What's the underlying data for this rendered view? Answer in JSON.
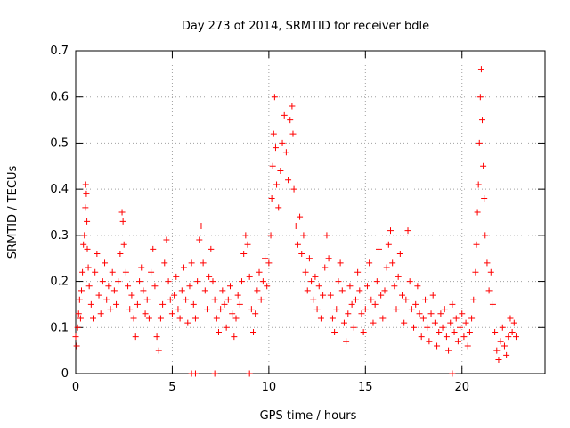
{
  "chart_data": {
    "type": "scatter",
    "title": "Day 273 of 2014, SRMTID for receiver bdle",
    "xlabel": "GPS time / hours",
    "ylabel": "SRMTID / TECUs",
    "xlim": [
      0,
      24.3
    ],
    "ylim": [
      0,
      0.7
    ],
    "xticks": [
      0,
      5,
      10,
      15,
      20
    ],
    "yticks": [
      0,
      0.1,
      0.2,
      0.3,
      0.4,
      0.5,
      0.6,
      0.7
    ],
    "grid": true,
    "marker": "+",
    "series": [
      {
        "name": "bdle",
        "color": "#ff0000",
        "points": [
          [
            0.0,
            0.08
          ],
          [
            0.05,
            0.06
          ],
          [
            0.1,
            0.1
          ],
          [
            0.15,
            0.13
          ],
          [
            0.2,
            0.16
          ],
          [
            0.25,
            0.12
          ],
          [
            0.3,
            0.18
          ],
          [
            0.35,
            0.22
          ],
          [
            0.4,
            0.28
          ],
          [
            0.45,
            0.3
          ],
          [
            0.5,
            0.36
          ],
          [
            0.52,
            0.41
          ],
          [
            0.55,
            0.39
          ],
          [
            0.58,
            0.33
          ],
          [
            0.6,
            0.27
          ],
          [
            0.65,
            0.23
          ],
          [
            0.7,
            0.19
          ],
          [
            0.8,
            0.15
          ],
          [
            0.9,
            0.12
          ],
          [
            1.0,
            0.22
          ],
          [
            1.1,
            0.26
          ],
          [
            1.2,
            0.17
          ],
          [
            1.3,
            0.13
          ],
          [
            1.4,
            0.2
          ],
          [
            1.5,
            0.24
          ],
          [
            1.6,
            0.16
          ],
          [
            1.7,
            0.19
          ],
          [
            1.8,
            0.14
          ],
          [
            1.9,
            0.22
          ],
          [
            2.0,
            0.18
          ],
          [
            2.1,
            0.15
          ],
          [
            2.2,
            0.2
          ],
          [
            2.3,
            0.26
          ],
          [
            2.4,
            0.35
          ],
          [
            2.45,
            0.33
          ],
          [
            2.5,
            0.28
          ],
          [
            2.6,
            0.22
          ],
          [
            2.7,
            0.19
          ],
          [
            2.8,
            0.14
          ],
          [
            2.9,
            0.17
          ],
          [
            3.0,
            0.12
          ],
          [
            3.1,
            0.08
          ],
          [
            3.2,
            0.15
          ],
          [
            3.3,
            0.2
          ],
          [
            3.4,
            0.23
          ],
          [
            3.5,
            0.18
          ],
          [
            3.6,
            0.13
          ],
          [
            3.7,
            0.16
          ],
          [
            3.8,
            0.12
          ],
          [
            3.9,
            0.22
          ],
          [
            4.0,
            0.27
          ],
          [
            4.1,
            0.19
          ],
          [
            4.2,
            0.08
          ],
          [
            4.3,
            0.05
          ],
          [
            4.4,
            0.12
          ],
          [
            4.5,
            0.15
          ],
          [
            4.6,
            0.24
          ],
          [
            4.7,
            0.29
          ],
          [
            4.8,
            0.2
          ],
          [
            4.9,
            0.16
          ],
          [
            5.0,
            0.13
          ],
          [
            5.1,
            0.17
          ],
          [
            5.2,
            0.21
          ],
          [
            5.3,
            0.14
          ],
          [
            5.4,
            0.12
          ],
          [
            5.5,
            0.18
          ],
          [
            5.6,
            0.23
          ],
          [
            5.7,
            0.16
          ],
          [
            5.8,
            0.11
          ],
          [
            5.9,
            0.19
          ],
          [
            6.0,
            0.24
          ],
          [
            6.1,
            0.15
          ],
          [
            6.2,
            0.12
          ],
          [
            6.3,
            0.2
          ],
          [
            6.4,
            0.29
          ],
          [
            6.5,
            0.32
          ],
          [
            6.6,
            0.24
          ],
          [
            6.7,
            0.18
          ],
          [
            6.8,
            0.14
          ],
          [
            6.9,
            0.21
          ],
          [
            7.0,
            0.27
          ],
          [
            7.1,
            0.2
          ],
          [
            7.2,
            0.16
          ],
          [
            7.3,
            0.12
          ],
          [
            7.4,
            0.09
          ],
          [
            7.5,
            0.14
          ],
          [
            7.6,
            0.18
          ],
          [
            7.7,
            0.15
          ],
          [
            7.8,
            0.1
          ],
          [
            7.9,
            0.16
          ],
          [
            8.0,
            0.19
          ],
          [
            8.1,
            0.13
          ],
          [
            8.2,
            0.08
          ],
          [
            8.3,
            0.12
          ],
          [
            8.4,
            0.17
          ],
          [
            8.5,
            0.15
          ],
          [
            8.6,
            0.2
          ],
          [
            8.7,
            0.26
          ],
          [
            8.8,
            0.3
          ],
          [
            8.9,
            0.28
          ],
          [
            9.0,
            0.21
          ],
          [
            9.1,
            0.14
          ],
          [
            9.2,
            0.09
          ],
          [
            9.3,
            0.13
          ],
          [
            9.4,
            0.18
          ],
          [
            9.5,
            0.22
          ],
          [
            9.6,
            0.16
          ],
          [
            9.7,
            0.2
          ],
          [
            9.8,
            0.25
          ],
          [
            9.9,
            0.19
          ],
          [
            10.0,
            0.24
          ],
          [
            10.1,
            0.3
          ],
          [
            10.15,
            0.38
          ],
          [
            10.2,
            0.45
          ],
          [
            10.25,
            0.52
          ],
          [
            10.3,
            0.6
          ],
          [
            10.35,
            0.49
          ],
          [
            10.4,
            0.41
          ],
          [
            10.5,
            0.36
          ],
          [
            10.6,
            0.44
          ],
          [
            10.7,
            0.5
          ],
          [
            10.8,
            0.56
          ],
          [
            10.9,
            0.48
          ],
          [
            11.0,
            0.42
          ],
          [
            11.1,
            0.55
          ],
          [
            11.2,
            0.58
          ],
          [
            11.25,
            0.52
          ],
          [
            11.3,
            0.4
          ],
          [
            11.4,
            0.32
          ],
          [
            11.5,
            0.28
          ],
          [
            11.6,
            0.34
          ],
          [
            11.7,
            0.26
          ],
          [
            11.8,
            0.3
          ],
          [
            11.9,
            0.22
          ],
          [
            12.0,
            0.18
          ],
          [
            12.1,
            0.25
          ],
          [
            12.2,
            0.2
          ],
          [
            12.3,
            0.16
          ],
          [
            12.4,
            0.21
          ],
          [
            12.5,
            0.14
          ],
          [
            12.6,
            0.19
          ],
          [
            12.7,
            0.12
          ],
          [
            12.8,
            0.17
          ],
          [
            12.9,
            0.23
          ],
          [
            13.0,
            0.3
          ],
          [
            13.1,
            0.25
          ],
          [
            13.2,
            0.17
          ],
          [
            13.3,
            0.12
          ],
          [
            13.4,
            0.09
          ],
          [
            13.5,
            0.14
          ],
          [
            13.6,
            0.2
          ],
          [
            13.7,
            0.24
          ],
          [
            13.8,
            0.18
          ],
          [
            13.9,
            0.11
          ],
          [
            14.0,
            0.07
          ],
          [
            14.1,
            0.13
          ],
          [
            14.2,
            0.19
          ],
          [
            14.3,
            0.15
          ],
          [
            14.4,
            0.1
          ],
          [
            14.5,
            0.16
          ],
          [
            14.6,
            0.22
          ],
          [
            14.7,
            0.18
          ],
          [
            14.8,
            0.13
          ],
          [
            14.9,
            0.09
          ],
          [
            15.0,
            0.14
          ],
          [
            15.1,
            0.19
          ],
          [
            15.2,
            0.24
          ],
          [
            15.3,
            0.16
          ],
          [
            15.4,
            0.11
          ],
          [
            15.5,
            0.15
          ],
          [
            15.6,
            0.2
          ],
          [
            15.7,
            0.27
          ],
          [
            15.8,
            0.17
          ],
          [
            15.9,
            0.12
          ],
          [
            16.0,
            0.18
          ],
          [
            16.1,
            0.23
          ],
          [
            16.2,
            0.28
          ],
          [
            16.3,
            0.31
          ],
          [
            16.4,
            0.24
          ],
          [
            16.5,
            0.19
          ],
          [
            16.6,
            0.14
          ],
          [
            16.7,
            0.21
          ],
          [
            16.8,
            0.26
          ],
          [
            16.9,
            0.17
          ],
          [
            17.0,
            0.11
          ],
          [
            17.1,
            0.16
          ],
          [
            17.2,
            0.31
          ],
          [
            17.3,
            0.2
          ],
          [
            17.4,
            0.14
          ],
          [
            17.5,
            0.1
          ],
          [
            17.6,
            0.15
          ],
          [
            17.7,
            0.19
          ],
          [
            17.8,
            0.13
          ],
          [
            17.9,
            0.08
          ],
          [
            18.0,
            0.12
          ],
          [
            18.1,
            0.16
          ],
          [
            18.2,
            0.1
          ],
          [
            18.3,
            0.07
          ],
          [
            18.4,
            0.13
          ],
          [
            18.5,
            0.17
          ],
          [
            18.6,
            0.11
          ],
          [
            18.7,
            0.06
          ],
          [
            18.8,
            0.09
          ],
          [
            18.9,
            0.13
          ],
          [
            19.0,
            0.1
          ],
          [
            19.1,
            0.14
          ],
          [
            19.2,
            0.08
          ],
          [
            19.3,
            0.05
          ],
          [
            19.4,
            0.11
          ],
          [
            19.5,
            0.15
          ],
          [
            19.6,
            0.09
          ],
          [
            19.7,
            0.12
          ],
          [
            19.8,
            0.07
          ],
          [
            19.9,
            0.1
          ],
          [
            20.0,
            0.13
          ],
          [
            20.1,
            0.08
          ],
          [
            20.2,
            0.11
          ],
          [
            20.3,
            0.06
          ],
          [
            20.4,
            0.09
          ],
          [
            20.5,
            0.12
          ],
          [
            20.6,
            0.16
          ],
          [
            20.7,
            0.22
          ],
          [
            20.75,
            0.28
          ],
          [
            20.8,
            0.35
          ],
          [
            20.85,
            0.41
          ],
          [
            20.9,
            0.5
          ],
          [
            20.95,
            0.6
          ],
          [
            21.0,
            0.66
          ],
          [
            21.05,
            0.55
          ],
          [
            21.1,
            0.45
          ],
          [
            21.15,
            0.38
          ],
          [
            21.2,
            0.3
          ],
          [
            21.3,
            0.24
          ],
          [
            21.4,
            0.18
          ],
          [
            21.5,
            0.22
          ],
          [
            21.6,
            0.15
          ],
          [
            21.7,
            0.09
          ],
          [
            21.8,
            0.05
          ],
          [
            21.9,
            0.03
          ],
          [
            22.0,
            0.07
          ],
          [
            22.1,
            0.1
          ],
          [
            22.2,
            0.06
          ],
          [
            22.3,
            0.04
          ],
          [
            22.4,
            0.08
          ],
          [
            22.5,
            0.12
          ],
          [
            22.6,
            0.09
          ],
          [
            22.7,
            0.11
          ],
          [
            22.8,
            0.08
          ],
          [
            6.0,
            0.0
          ],
          [
            6.2,
            0.0
          ],
          [
            7.2,
            0.0
          ],
          [
            9.0,
            0.0
          ],
          [
            19.5,
            0.0
          ]
        ]
      }
    ]
  }
}
